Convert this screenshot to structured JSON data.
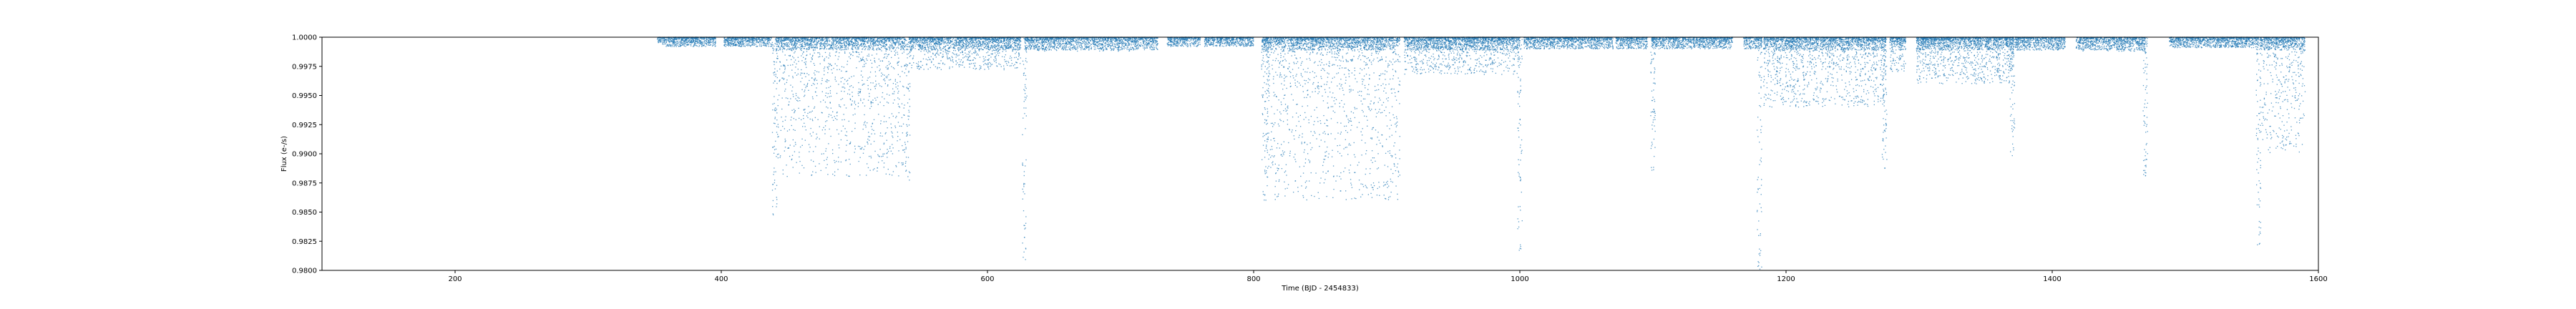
{
  "chart_data": {
    "type": "scatter",
    "xlabel": "Time (BJD - 2454833)",
    "ylabel": "Flux (e-/s)",
    "xlim": [
      100,
      1600
    ],
    "ylim": [
      0.98,
      1.0
    ],
    "xticks": [
      200,
      400,
      600,
      800,
      1000,
      1200,
      1400,
      1600
    ],
    "yticks": [
      0.98,
      0.9825,
      0.985,
      0.9875,
      0.99,
      0.9925,
      0.995,
      0.9975,
      1.0
    ],
    "ytick_labels": [
      "0.9800",
      "0.9825",
      "0.9850",
      "0.9875",
      "0.9900",
      "0.9925",
      "0.9950",
      "0.9975",
      "1.0000"
    ],
    "marker_color": "#1f77b4",
    "grid": false,
    "series": [
      {
        "observing_segments": [
          {
            "start": 352,
            "end": 396,
            "scatter_depth": 0.0008
          },
          {
            "start": 402,
            "end": 438,
            "scatter_depth": 0.0008
          },
          {
            "start": 441,
            "end": 538,
            "scatter_depth": 0.012
          },
          {
            "start": 541,
            "end": 625,
            "scatter_depth": 0.0028
          },
          {
            "start": 628,
            "end": 728,
            "scatter_depth": 0.0012
          },
          {
            "start": 735,
            "end": 760,
            "scatter_depth": 0.0008
          },
          {
            "start": 763,
            "end": 800,
            "scatter_depth": 0.0008
          },
          {
            "start": 806,
            "end": 910,
            "scatter_depth": 0.014
          },
          {
            "start": 913,
            "end": 1000,
            "scatter_depth": 0.0032
          },
          {
            "start": 1003,
            "end": 1070,
            "scatter_depth": 0.001
          },
          {
            "start": 1072,
            "end": 1096,
            "scatter_depth": 0.001
          },
          {
            "start": 1099,
            "end": 1160,
            "scatter_depth": 0.001
          },
          {
            "start": 1168,
            "end": 1182,
            "scatter_depth": 0.001
          },
          {
            "start": 1183,
            "end": 1275,
            "scatter_depth": 0.006
          },
          {
            "start": 1278,
            "end": 1290,
            "scatter_depth": 0.003
          },
          {
            "start": 1298,
            "end": 1371,
            "scatter_depth": 0.004
          },
          {
            "start": 1372,
            "end": 1410,
            "scatter_depth": 0.0012
          },
          {
            "start": 1418,
            "end": 1470,
            "scatter_depth": 0.0012
          },
          {
            "start": 1488,
            "end": 1555,
            "scatter_depth": 0.0009
          },
          {
            "start": 1556,
            "end": 1590,
            "scatter_depth": 0.01
          }
        ],
        "dips": [
          {
            "x": 440,
            "min_flux": 0.9845
          },
          {
            "x": 540,
            "min_flux": 0.9875
          },
          {
            "x": 628,
            "min_flux": 0.9808
          },
          {
            "x": 810,
            "min_flux": 0.9878
          },
          {
            "x": 1000,
            "min_flux": 0.9815
          },
          {
            "x": 1100,
            "min_flux": 0.9885
          },
          {
            "x": 1180,
            "min_flux": 0.98
          },
          {
            "x": 1274,
            "min_flux": 0.9885
          },
          {
            "x": 1370,
            "min_flux": 0.9895
          },
          {
            "x": 1470,
            "min_flux": 0.988
          },
          {
            "x": 1555,
            "min_flux": 0.982
          }
        ]
      }
    ]
  }
}
